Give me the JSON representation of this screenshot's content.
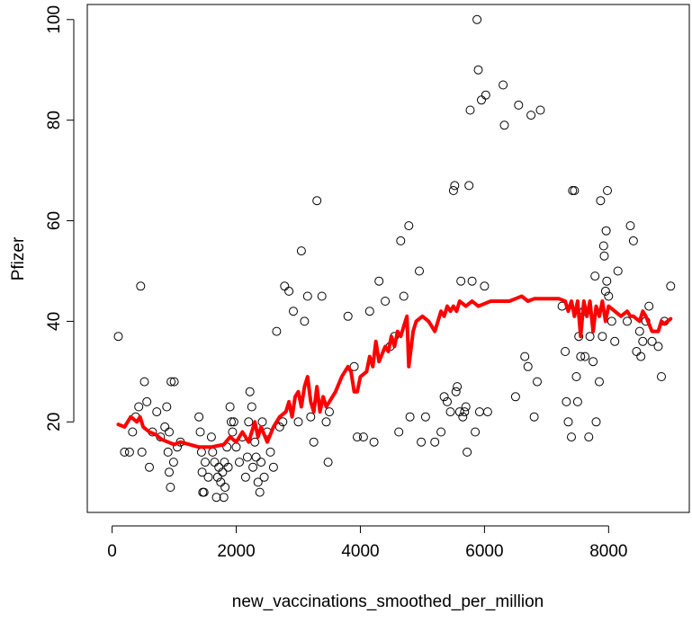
{
  "chart_data": {
    "type": "scatter",
    "xlabel": "new_vaccinations_smoothed_per_million",
    "ylabel": "Pfizer",
    "xlim": [
      -400,
      9300
    ],
    "ylim": [
      2,
      103
    ],
    "xticks": [
      "0",
      "2000",
      "4000",
      "6000",
      "8000"
    ],
    "yticks": [
      "20",
      "40",
      "60",
      "80",
      "100"
    ],
    "grid": false,
    "legend": "none",
    "colors": {
      "points": "#000000",
      "smooth": "#ff0000"
    },
    "series": [
      {
        "kind": "points",
        "points": [
          [
            100,
            37
          ],
          [
            200,
            14
          ],
          [
            280,
            14
          ],
          [
            330,
            18
          ],
          [
            380,
            21
          ],
          [
            430,
            23
          ],
          [
            480,
            14
          ],
          [
            520,
            28
          ],
          [
            460,
            47
          ],
          [
            560,
            24
          ],
          [
            600,
            11
          ],
          [
            650,
            18
          ],
          [
            720,
            22
          ],
          [
            780,
            17
          ],
          [
            850,
            19
          ],
          [
            880,
            23
          ],
          [
            900,
            14
          ],
          [
            920,
            10
          ],
          [
            940,
            7
          ],
          [
            950,
            28
          ],
          [
            1000,
            28
          ],
          [
            1050,
            15
          ],
          [
            1100,
            16
          ],
          [
            990,
            12
          ],
          [
            920,
            18
          ],
          [
            1400,
            21
          ],
          [
            1420,
            18
          ],
          [
            1440,
            14
          ],
          [
            1450,
            10
          ],
          [
            1460,
            6
          ],
          [
            1480,
            6
          ],
          [
            1500,
            12
          ],
          [
            1550,
            9
          ],
          [
            1600,
            17
          ],
          [
            1620,
            14
          ],
          [
            1650,
            12
          ],
          [
            1680,
            5
          ],
          [
            1700,
            9
          ],
          [
            1720,
            11
          ],
          [
            1750,
            8
          ],
          [
            1780,
            10
          ],
          [
            1800,
            5
          ],
          [
            1810,
            12
          ],
          [
            1820,
            7
          ],
          [
            1850,
            15
          ],
          [
            1870,
            11
          ],
          [
            1900,
            23
          ],
          [
            1920,
            20
          ],
          [
            1940,
            18
          ],
          [
            1960,
            20
          ],
          [
            2000,
            15
          ],
          [
            2050,
            12
          ],
          [
            2100,
            17
          ],
          [
            2150,
            9
          ],
          [
            2180,
            13
          ],
          [
            2200,
            20
          ],
          [
            2220,
            26
          ],
          [
            2250,
            23
          ],
          [
            2270,
            11
          ],
          [
            2300,
            16
          ],
          [
            2320,
            13
          ],
          [
            2350,
            8
          ],
          [
            2380,
            6
          ],
          [
            2400,
            12
          ],
          [
            2420,
            20
          ],
          [
            2450,
            9
          ],
          [
            2500,
            18
          ],
          [
            2550,
            14
          ],
          [
            2600,
            11
          ],
          [
            2650,
            38
          ],
          [
            2700,
            19
          ],
          [
            2750,
            20
          ],
          [
            2780,
            47
          ],
          [
            2850,
            46
          ],
          [
            2920,
            42
          ],
          [
            3000,
            20
          ],
          [
            3050,
            54
          ],
          [
            3100,
            40
          ],
          [
            3150,
            45
          ],
          [
            3200,
            21
          ],
          [
            3250,
            16
          ],
          [
            3300,
            64
          ],
          [
            3380,
            45
          ],
          [
            3450,
            20
          ],
          [
            3480,
            12
          ],
          [
            3500,
            22
          ],
          [
            3800,
            41
          ],
          [
            3900,
            31
          ],
          [
            3950,
            17
          ],
          [
            4050,
            17
          ],
          [
            4150,
            42
          ],
          [
            4220,
            16
          ],
          [
            4300,
            48
          ],
          [
            4400,
            44
          ],
          [
            4480,
            35
          ],
          [
            4550,
            37
          ],
          [
            4620,
            18
          ],
          [
            4650,
            56
          ],
          [
            4700,
            45
          ],
          [
            4780,
            59
          ],
          [
            4800,
            21
          ],
          [
            4950,
            50
          ],
          [
            4980,
            16
          ],
          [
            5050,
            21
          ],
          [
            5200,
            16
          ],
          [
            5300,
            18
          ],
          [
            5350,
            25
          ],
          [
            5400,
            24
          ],
          [
            5450,
            22
          ],
          [
            5500,
            66
          ],
          [
            5520,
            67
          ],
          [
            5540,
            26
          ],
          [
            5560,
            27
          ],
          [
            5600,
            22
          ],
          [
            5620,
            48
          ],
          [
            5650,
            21
          ],
          [
            5680,
            22
          ],
          [
            5700,
            23
          ],
          [
            5720,
            14
          ],
          [
            5750,
            67
          ],
          [
            5770,
            82
          ],
          [
            5800,
            48
          ],
          [
            5850,
            18
          ],
          [
            5880,
            100
          ],
          [
            5900,
            90
          ],
          [
            5920,
            22
          ],
          [
            5950,
            84
          ],
          [
            6000,
            47
          ],
          [
            6020,
            85
          ],
          [
            6050,
            22
          ],
          [
            6300,
            87
          ],
          [
            6320,
            79
          ],
          [
            6500,
            25
          ],
          [
            6550,
            83
          ],
          [
            6650,
            33
          ],
          [
            6700,
            31
          ],
          [
            6750,
            81
          ],
          [
            6800,
            21
          ],
          [
            6850,
            28
          ],
          [
            6900,
            82
          ],
          [
            7250,
            43
          ],
          [
            7300,
            34
          ],
          [
            7320,
            24
          ],
          [
            7350,
            20
          ],
          [
            7400,
            17
          ],
          [
            7420,
            66
          ],
          [
            7450,
            66
          ],
          [
            7480,
            29
          ],
          [
            7500,
            24
          ],
          [
            7520,
            37
          ],
          [
            7550,
            33
          ],
          [
            7600,
            42
          ],
          [
            7620,
            33
          ],
          [
            7680,
            17
          ],
          [
            7700,
            37
          ],
          [
            7750,
            32
          ],
          [
            7780,
            49
          ],
          [
            7800,
            20
          ],
          [
            7850,
            28
          ],
          [
            7870,
            64
          ],
          [
            7900,
            37
          ],
          [
            7920,
            55
          ],
          [
            7930,
            53
          ],
          [
            7950,
            46
          ],
          [
            7960,
            58
          ],
          [
            7970,
            48
          ],
          [
            7980,
            66
          ],
          [
            8000,
            45
          ],
          [
            8050,
            40
          ],
          [
            8100,
            36
          ],
          [
            8150,
            50
          ],
          [
            8300,
            40
          ],
          [
            8350,
            59
          ],
          [
            8400,
            56
          ],
          [
            8450,
            34
          ],
          [
            8500,
            38
          ],
          [
            8520,
            33
          ],
          [
            8550,
            36
          ],
          [
            8600,
            40
          ],
          [
            8650,
            43
          ],
          [
            8700,
            36
          ],
          [
            8800,
            35
          ],
          [
            8850,
            29
          ],
          [
            8900,
            40
          ],
          [
            9000,
            47
          ]
        ]
      },
      {
        "kind": "line",
        "points": [
          [
            100,
            19.5
          ],
          [
            200,
            19
          ],
          [
            300,
            21
          ],
          [
            400,
            20
          ],
          [
            450,
            21
          ],
          [
            500,
            19
          ],
          [
            600,
            18
          ],
          [
            700,
            17.5
          ],
          [
            800,
            16.5
          ],
          [
            900,
            16
          ],
          [
            1000,
            15.5
          ],
          [
            1100,
            16
          ],
          [
            1400,
            15
          ],
          [
            1600,
            15
          ],
          [
            1800,
            15.5
          ],
          [
            1900,
            17
          ],
          [
            2000,
            16
          ],
          [
            2100,
            18
          ],
          [
            2200,
            16
          ],
          [
            2250,
            18
          ],
          [
            2300,
            20
          ],
          [
            2350,
            17
          ],
          [
            2400,
            19
          ],
          [
            2500,
            16
          ],
          [
            2600,
            19
          ],
          [
            2700,
            21
          ],
          [
            2800,
            22
          ],
          [
            2850,
            24
          ],
          [
            2900,
            21
          ],
          [
            2950,
            25
          ],
          [
            3000,
            26
          ],
          [
            3050,
            23
          ],
          [
            3100,
            27
          ],
          [
            3150,
            29
          ],
          [
            3200,
            24
          ],
          [
            3250,
            22
          ],
          [
            3300,
            27
          ],
          [
            3350,
            22
          ],
          [
            3400,
            25
          ],
          [
            3450,
            23
          ],
          [
            3500,
            24
          ],
          [
            3600,
            26
          ],
          [
            3700,
            29
          ],
          [
            3800,
            31
          ],
          [
            3850,
            30
          ],
          [
            3900,
            26
          ],
          [
            3950,
            26
          ],
          [
            4000,
            29
          ],
          [
            4100,
            30
          ],
          [
            4150,
            33
          ],
          [
            4200,
            31
          ],
          [
            4250,
            36
          ],
          [
            4300,
            32
          ],
          [
            4400,
            35
          ],
          [
            4450,
            34
          ],
          [
            4500,
            37
          ],
          [
            4550,
            35
          ],
          [
            4600,
            38
          ],
          [
            4650,
            37
          ],
          [
            4700,
            39
          ],
          [
            4750,
            41
          ],
          [
            4780,
            31
          ],
          [
            4850,
            38
          ],
          [
            4900,
            40
          ],
          [
            5000,
            41
          ],
          [
            5100,
            40
          ],
          [
            5200,
            38
          ],
          [
            5250,
            40
          ],
          [
            5300,
            42
          ],
          [
            5350,
            41
          ],
          [
            5400,
            43
          ],
          [
            5450,
            42
          ],
          [
            5500,
            43
          ],
          [
            5550,
            42
          ],
          [
            5600,
            44
          ],
          [
            5700,
            43
          ],
          [
            5800,
            44
          ],
          [
            5900,
            43
          ],
          [
            6000,
            43.5
          ],
          [
            6100,
            44
          ],
          [
            6200,
            44
          ],
          [
            6300,
            44
          ],
          [
            6400,
            44
          ],
          [
            6500,
            44.5
          ],
          [
            6600,
            45
          ],
          [
            6700,
            44
          ],
          [
            6800,
            44.5
          ],
          [
            6900,
            44.5
          ],
          [
            7000,
            44.5
          ],
          [
            7100,
            44.5
          ],
          [
            7200,
            44.5
          ],
          [
            7300,
            44
          ],
          [
            7350,
            42
          ],
          [
            7400,
            44
          ],
          [
            7450,
            41
          ],
          [
            7500,
            44
          ],
          [
            7550,
            37
          ],
          [
            7600,
            44
          ],
          [
            7650,
            41
          ],
          [
            7700,
            44
          ],
          [
            7750,
            38
          ],
          [
            7800,
            43
          ],
          [
            7850,
            41
          ],
          [
            7900,
            44
          ],
          [
            7950,
            40
          ],
          [
            8000,
            43
          ],
          [
            8100,
            42
          ],
          [
            8200,
            41
          ],
          [
            8300,
            42
          ],
          [
            8350,
            41
          ],
          [
            8400,
            41
          ],
          [
            8500,
            40
          ],
          [
            8550,
            42
          ],
          [
            8600,
            41
          ],
          [
            8700,
            38
          ],
          [
            8750,
            38
          ],
          [
            8800,
            38
          ],
          [
            8850,
            40
          ],
          [
            8900,
            39.5
          ],
          [
            9000,
            40.5
          ]
        ]
      }
    ]
  }
}
